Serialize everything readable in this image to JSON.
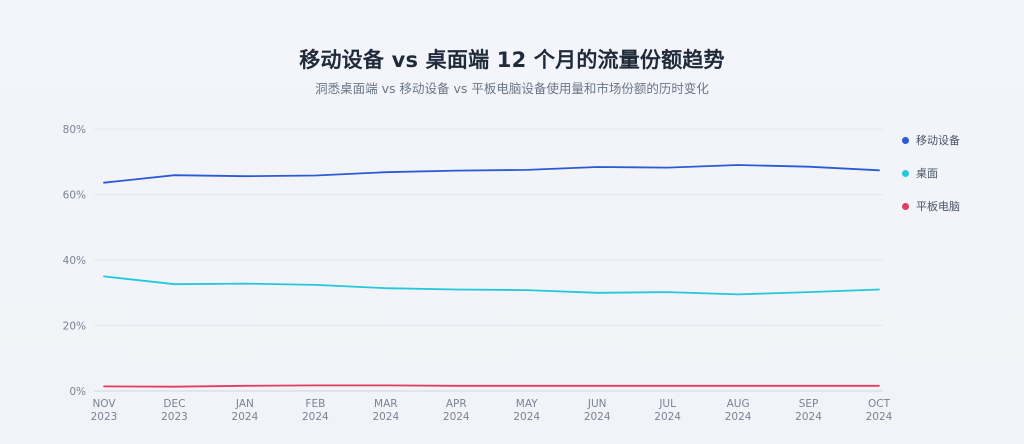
{
  "chart_data": {
    "type": "line",
    "title": "移动设备 vs 桌面端 12 个月的流量份额趋势",
    "subtitle": "洞悉桌面端 vs 移动设备 vs 平板电脑设备使用量和市场份额的历时变化",
    "xlabel": "",
    "ylabel": "",
    "ylim": [
      0,
      80
    ],
    "yticks": [
      "0%",
      "20%",
      "40%",
      "60%",
      "80%"
    ],
    "ytick_values": [
      0,
      20,
      40,
      60,
      80
    ],
    "categories": [
      [
        "NOV",
        "2023"
      ],
      [
        "DEC",
        "2023"
      ],
      [
        "JAN",
        "2024"
      ],
      [
        "FEB",
        "2024"
      ],
      [
        "MAR",
        "2024"
      ],
      [
        "APR",
        "2024"
      ],
      [
        "MAY",
        "2024"
      ],
      [
        "JUN",
        "2024"
      ],
      [
        "JUL",
        "2024"
      ],
      [
        "AUG",
        "2024"
      ],
      [
        "SEP",
        "2024"
      ],
      [
        "OCT",
        "2024"
      ]
    ],
    "grid": true,
    "legend_position": "right",
    "series": [
      {
        "name": "移动设备",
        "color": "#2a5bd7",
        "values": [
          63.6,
          65.9,
          65.6,
          65.8,
          66.8,
          67.3,
          67.5,
          68.4,
          68.2,
          69.0,
          68.5,
          67.4
        ]
      },
      {
        "name": "桌面",
        "color": "#22c8dc",
        "values": [
          35.0,
          32.6,
          32.8,
          32.4,
          31.4,
          31.0,
          30.8,
          30.0,
          30.2,
          29.5,
          30.2,
          31.0
        ]
      },
      {
        "name": "平板电脑",
        "color": "#e23c5e",
        "values": [
          1.4,
          1.3,
          1.6,
          1.7,
          1.7,
          1.6,
          1.6,
          1.6,
          1.6,
          1.6,
          1.6,
          1.6
        ]
      }
    ]
  }
}
